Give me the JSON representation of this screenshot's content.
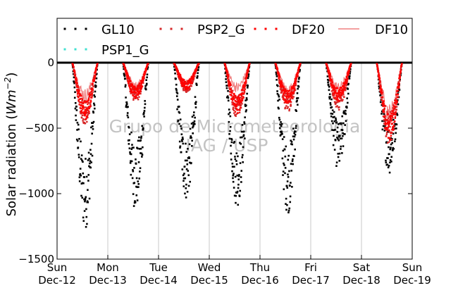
{
  "chart_data": {
    "type": "scatter",
    "title": "",
    "xlabel": "",
    "ylabel": "Solar radiation (Wm⁻²)",
    "ylabel_parts": {
      "prefix": "Solar radiation (",
      "unit": "Wm",
      "exp": "−2",
      "suffix": ")"
    },
    "ylim": [
      -1500,
      0
    ],
    "yticks": [
      0,
      -500,
      -1000,
      -1500
    ],
    "ytick_labels": [
      "0",
      "−500",
      "−1000",
      "−1500"
    ],
    "xlim": [
      0,
      7
    ],
    "xticks": [
      {
        "day": "Sun",
        "date": "Dec-12"
      },
      {
        "day": "Mon",
        "date": "Dec-13"
      },
      {
        "day": "Tue",
        "date": "Dec-14"
      },
      {
        "day": "Wed",
        "date": "Dec-15"
      },
      {
        "day": "Thu",
        "date": "Dec-16"
      },
      {
        "day": "Fri",
        "date": "Dec-17"
      },
      {
        "day": "Sat",
        "date": "Dec-18"
      },
      {
        "day": "Sun",
        "date": "Dec-19"
      }
    ],
    "grid": "vertical",
    "legend_position": "top",
    "watermark": [
      "Grupo de Micrometeorologia",
      "IAG / USP"
    ],
    "series": [
      {
        "name": "GL10",
        "style": "dots",
        "color": "#000000",
        "daily_peak": [
          -1280,
          -1130,
          -1050,
          -1100,
          -1150,
          -830,
          -850
        ]
      },
      {
        "name": "PSP2_G",
        "style": "dots",
        "color": "#d62728",
        "daily_peak": [
          -470,
          -300,
          -230,
          -420,
          -380,
          -360,
          -630
        ]
      },
      {
        "name": "DF20",
        "style": "dots",
        "color": "#ff0000",
        "daily_peak": [
          -440,
          -280,
          -210,
          -390,
          -330,
          -300,
          -600
        ]
      },
      {
        "name": "DF10",
        "style": "line",
        "color": "#f08080",
        "daily_peak": [
          -300,
          -220,
          -200,
          -230,
          -260,
          -230,
          -470
        ]
      },
      {
        "name": "PSP1_G",
        "style": "dots",
        "color": "#40e0d0",
        "daily_peak": [
          0,
          0,
          0,
          0,
          0,
          0,
          0
        ]
      }
    ]
  }
}
